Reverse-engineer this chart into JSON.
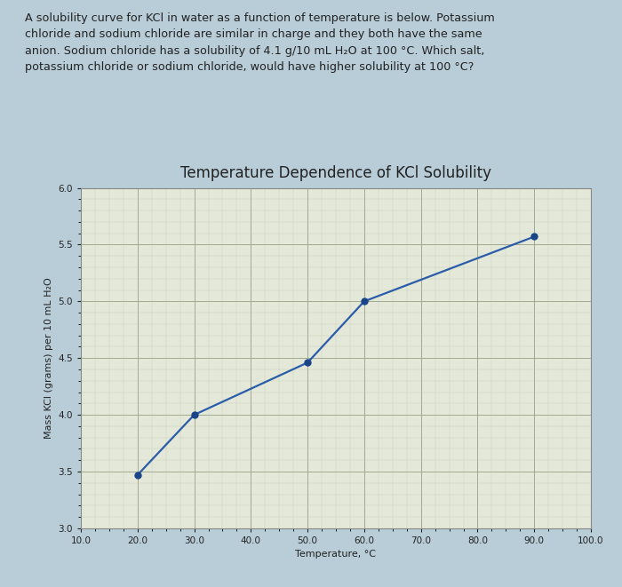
{
  "title": "Temperature Dependence of KCl Solubility",
  "xlabel": "Temperature, °C",
  "ylabel": "Mass KCl (grams) per 10 mL H₂O",
  "x_data": [
    20.0,
    30.0,
    50.0,
    60.0,
    90.0
  ],
  "y_data": [
    3.47,
    4.0,
    4.46,
    5.0,
    5.57
  ],
  "line_color": "#2a5caa",
  "marker_color": "#1a4488",
  "xlim": [
    10.0,
    100.0
  ],
  "ylim": [
    3.0,
    6.0
  ],
  "xticks": [
    10.0,
    20.0,
    30.0,
    40.0,
    50.0,
    60.0,
    70.0,
    80.0,
    90.0,
    100.0
  ],
  "yticks": [
    3.0,
    3.5,
    4.0,
    4.5,
    5.0,
    5.5,
    6.0
  ],
  "fig_bg_color": "#b8cdd8",
  "text_box_color": "#dce8ee",
  "plot_bg_color": "#e4e8d8",
  "plot_box_color": "#ffffff",
  "text_color": "#222222",
  "title_fontsize": 12,
  "label_fontsize": 8,
  "tick_fontsize": 7.5,
  "marker_size": 5,
  "line_width": 1.6,
  "question_text": "A solubility curve for KCl in water as a function of temperature is below. Potassium\nchloride and sodium chloride are similar in charge and they both have the same\nanion. Sodium chloride has a solubility of 4.1 g/10 mL H₂O at 100 °C. Which salt,\npotassium chloride or sodium chloride, would have higher solubility at 100 °C?"
}
